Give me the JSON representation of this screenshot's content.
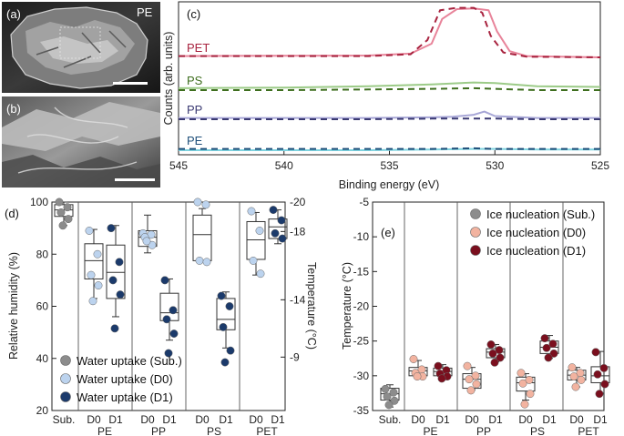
{
  "panels": {
    "a": {
      "label": "(a)",
      "tag": "PE"
    },
    "b": {
      "label": "(b)"
    }
  },
  "chart_data": [
    {
      "id": "c",
      "panel": "(c)",
      "type": "line",
      "title": "",
      "xlabel": "Binding energy (eV)",
      "ylabel": "Counts (arb. units)",
      "xlim": [
        545,
        525
      ],
      "x_reversed": true,
      "xticks": [
        545,
        540,
        535,
        530,
        525
      ],
      "legend": "labels beside traces",
      "series": [
        {
          "name": "PET",
          "color": "#e8849a",
          "dash_color": "#a8233f",
          "offset": 1.0,
          "solid": [
            [
              545,
              0.02
            ],
            [
              536,
              0.03
            ],
            [
              534,
              0.06
            ],
            [
              533,
              0.22
            ],
            [
              532.5,
              0.62
            ],
            [
              531.8,
              0.78
            ],
            [
              531,
              0.79
            ],
            [
              530.3,
              0.76
            ],
            [
              529.9,
              0.42
            ],
            [
              529.3,
              0.1
            ],
            [
              528.5,
              0.02
            ],
            [
              525,
              0.0
            ]
          ],
          "dashed": [
            [
              545,
              0.02
            ],
            [
              536,
              0.02
            ],
            [
              534,
              0.05
            ],
            [
              533.2,
              0.28
            ],
            [
              532.6,
              0.76
            ],
            [
              531.8,
              0.8
            ],
            [
              531,
              0.8
            ],
            [
              530.6,
              0.72
            ],
            [
              530.2,
              0.35
            ],
            [
              529.6,
              0.08
            ],
            [
              528.5,
              0.01
            ],
            [
              525,
              0.0
            ]
          ]
        },
        {
          "name": "PS",
          "color": "#9ccb88",
          "dash_color": "#3e6e1e",
          "offset": 0.55,
          "solid": [
            [
              545,
              0.03
            ],
            [
              540,
              0.04
            ],
            [
              536,
              0.06
            ],
            [
              533,
              0.09
            ],
            [
              531,
              0.12
            ],
            [
              530,
              0.11
            ],
            [
              528,
              0.06
            ],
            [
              525,
              0.05
            ]
          ],
          "dashed": [
            [
              545,
              0.0
            ],
            [
              540,
              0.0
            ],
            [
              536,
              0.01
            ],
            [
              533,
              0.02
            ],
            [
              531,
              0.03
            ],
            [
              530,
              0.02
            ],
            [
              528,
              0.0
            ],
            [
              525,
              0.0
            ]
          ]
        },
        {
          "name": "PP",
          "color": "#a7a6d6",
          "dash_color": "#3b3a73",
          "offset": 0.26,
          "solid": [
            [
              545,
              0.02
            ],
            [
              540,
              0.02
            ],
            [
              536,
              0.02
            ],
            [
              533,
              0.03
            ],
            [
              532,
              0.04
            ],
            [
              531,
              0.07
            ],
            [
              530.5,
              0.12
            ],
            [
              530,
              0.05
            ],
            [
              528,
              0.02
            ],
            [
              525,
              0.02
            ]
          ],
          "dashed": [
            [
              545,
              0.0
            ],
            [
              540,
              0.0
            ],
            [
              536,
              0.0
            ],
            [
              533,
              0.01
            ],
            [
              531,
              0.01
            ],
            [
              530,
              0.01
            ],
            [
              528,
              0.0
            ],
            [
              525,
              0.0
            ]
          ]
        },
        {
          "name": "PE",
          "color": "#7fd3df",
          "dash_color": "#1f4f7a",
          "offset": 0.0,
          "solid": [
            [
              545,
              0.0
            ],
            [
              540,
              0.0
            ],
            [
              536,
              0.0
            ],
            [
              533,
              0.01
            ],
            [
              531,
              0.02
            ],
            [
              530,
              0.02
            ],
            [
              528,
              0.01
            ],
            [
              525,
              0.01
            ]
          ],
          "dashed": [
            [
              545,
              0.02
            ],
            [
              540,
              0.02
            ],
            [
              536,
              0.02
            ],
            [
              533,
              0.02
            ],
            [
              531,
              0.03
            ],
            [
              530,
              0.02
            ],
            [
              528,
              0.02
            ],
            [
              525,
              0.02
            ]
          ]
        }
      ]
    },
    {
      "id": "d",
      "panel": "(d)",
      "type": "box",
      "ylabel": "Relative humidity (%)",
      "ylim": [
        20,
        100
      ],
      "yticks": [
        20,
        40,
        60,
        80,
        100
      ],
      "ylabel_right": "Temperature (°C)",
      "right_ticks": [
        {
          "label": "-20",
          "rh": 100
        },
        {
          "label": "-9",
          "rh": 40.5
        },
        {
          "label": "-18",
          "rh": 88.7
        },
        {
          "label": "-14",
          "rh": 62.5
        }
      ],
      "groups": [
        "Sub.",
        "PE",
        "PP",
        "PS",
        "PET"
      ],
      "sublabels": [
        "D0",
        "D1"
      ],
      "legend": "bottom-left",
      "series": [
        {
          "name": "Water uptake (Sub.)",
          "color": "#8c8c8c",
          "boxes": [
            {
              "group": "Sub.",
              "sub": "",
              "q1": 94.5,
              "med": 97,
              "q3": 99,
              "wlo": 91,
              "whi": 100,
              "points": [
                100,
                98,
                96,
                93.5,
                91
              ]
            }
          ]
        },
        {
          "name": "Water uptake (D0)",
          "color": "#bcd3ee",
          "boxes": [
            {
              "group": "PE",
              "sub": "D0",
              "q1": 70.5,
              "med": 77.5,
              "q3": 84,
              "wlo": 63,
              "whi": 89.5,
              "points": [
                89,
                80,
                72,
                68,
                62
              ]
            },
            {
              "group": "PP",
              "sub": "D0",
              "q1": 83,
              "med": 86.5,
              "q3": 89,
              "wlo": 80.5,
              "whi": 95,
              "points": [
                88,
                87.5,
                86.5,
                83.5,
                85
              ]
            },
            {
              "group": "PS",
              "sub": "D0",
              "q1": 77.5,
              "med": 87.5,
              "q3": 95,
              "wlo": 77.5,
              "whi": 97.5,
              "points": [
                102,
                99,
                77.5,
                77
              ]
            },
            {
              "group": "PET",
              "sub": "D0",
              "q1": 78,
              "med": 85.5,
              "q3": 92.5,
              "wlo": 72,
              "whi": 96,
              "points": [
                96.5,
                89,
                77.5,
                72.5
              ]
            }
          ]
        },
        {
          "name": "Water uptake (D1)",
          "color": "#1b3a6b",
          "boxes": [
            {
              "group": "PE",
              "sub": "D1",
              "q1": 63,
              "med": 73,
              "q3": 83.5,
              "wlo": 56,
              "whi": 91,
              "points": [
                90,
                77,
                70,
                64.5,
                51.5
              ]
            },
            {
              "group": "PP",
              "sub": "D1",
              "q1": 54.5,
              "med": 57.5,
              "q3": 65,
              "wlo": 47,
              "whi": 70.5,
              "points": [
                70,
                58.5,
                55,
                49.5,
                42
              ]
            },
            {
              "group": "PS",
              "sub": "D1",
              "q1": 51,
              "med": 55,
              "q3": 63,
              "wlo": 44,
              "whi": 65.5,
              "points": [
                64,
                60,
                52,
                43,
                38.5
              ]
            },
            {
              "group": "PET",
              "sub": "D1",
              "q1": 86,
              "med": 90.5,
              "q3": 93.5,
              "wlo": 84,
              "whi": 97,
              "points": [
                97,
                93,
                88,
                86
              ]
            }
          ]
        }
      ]
    },
    {
      "id": "e",
      "panel": "(e)",
      "type": "box",
      "ylabel": "Temperature (°C)",
      "ylim": [
        -35,
        -5
      ],
      "yticks": [
        -35,
        -30,
        -25,
        -20,
        -15,
        -10,
        -5
      ],
      "groups": [
        "Sub.",
        "PE",
        "PP",
        "PS",
        "PET"
      ],
      "sublabels": [
        "D0",
        "D1"
      ],
      "legend": "top-right",
      "series": [
        {
          "name": "Ice nucleation (Sub.)",
          "color": "#8c8c8c",
          "boxes": [
            {
              "group": "Sub.",
              "sub": "",
              "q1": -33.5,
              "med": -32.6,
              "q3": -31.8,
              "wlo": -34.5,
              "whi": -31.3,
              "points": [
                -31.9,
                -32.4,
                -33.0,
                -33.6,
                -34.2
              ]
            }
          ]
        },
        {
          "name": "Ice nucleation (D0)",
          "color": "#f2b3a0",
          "boxes": [
            {
              "group": "PE",
              "sub": "D0",
              "q1": -30.0,
              "med": -29.3,
              "q3": -28.8,
              "wlo": -30.3,
              "whi": -27.8,
              "points": [
                -27.6,
                -29.1,
                -29.6,
                -30.1,
                -30.1
              ]
            },
            {
              "group": "PP",
              "sub": "D0",
              "q1": -31.8,
              "med": -30.5,
              "q3": -29.7,
              "wlo": -32.0,
              "whi": -28.8,
              "points": [
                -28.6,
                -30.0,
                -30.5,
                -31.2,
                -32.1
              ]
            },
            {
              "group": "PS",
              "sub": "D0",
              "q1": -32.2,
              "med": -31.0,
              "q3": -30.2,
              "wlo": -33.5,
              "whi": -29.7,
              "points": [
                -29.6,
                -30.6,
                -31.1,
                -32.6,
                -34.1
              ]
            },
            {
              "group": "PET",
              "sub": "D0",
              "q1": -30.6,
              "med": -29.9,
              "q3": -29.2,
              "wlo": -31.6,
              "whi": -28.8,
              "points": [
                -28.8,
                -29.6,
                -30.1,
                -30.6,
                -31.6
              ]
            }
          ]
        },
        {
          "name": "Ice nucleation (D1)",
          "color": "#7a0f1e",
          "boxes": [
            {
              "group": "PE",
              "sub": "D1",
              "q1": -30.0,
              "med": -29.4,
              "q3": -28.9,
              "wlo": -30.3,
              "whi": -28.4,
              "points": [
                -28.6,
                -29.2,
                -29.7,
                -30.1,
                -30.4
              ]
            },
            {
              "group": "PP",
              "sub": "D1",
              "q1": -27.4,
              "med": -26.6,
              "q3": -26.1,
              "wlo": -28.0,
              "whi": -25.5,
              "points": [
                -25.5,
                -26.3,
                -26.8,
                -27.4,
                -28.1
              ]
            },
            {
              "group": "PS",
              "sub": "D1",
              "q1": -26.8,
              "med": -25.9,
              "q3": -25.0,
              "wlo": -27.5,
              "whi": -24.2,
              "points": [
                -24.6,
                -25.4,
                -26.0,
                -26.8,
                -27.4
              ]
            },
            {
              "group": "PET",
              "sub": "D1",
              "q1": -31.0,
              "med": -30.0,
              "q3": -28.7,
              "wlo": -32.5,
              "whi": -26.5,
              "points": [
                -26.6,
                -28.9,
                -29.8,
                -31.2,
                -32.6
              ]
            }
          ]
        }
      ]
    }
  ]
}
